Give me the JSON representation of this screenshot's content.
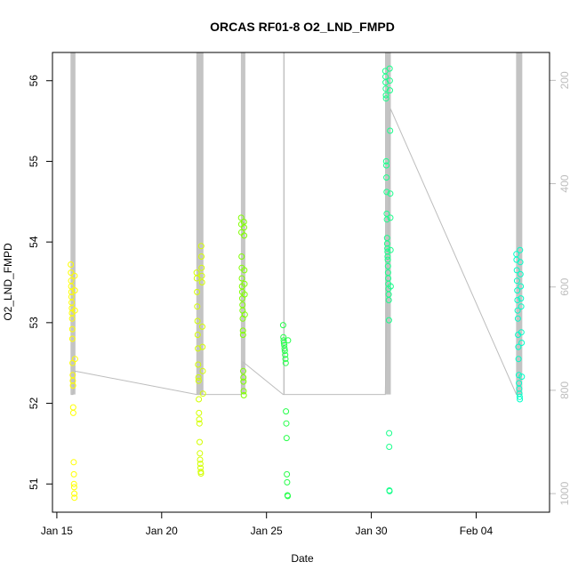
{
  "chart_data": {
    "type": "scatter",
    "title": "ORCAS RF01-8 O2_LND_FMPD",
    "xlabel": "Date",
    "ylabel": "O2_LND_FMPD",
    "x_range": [
      "2016-01-14T19:00",
      "2016-02-07T12:00"
    ],
    "ylim": [
      50.65,
      56.35
    ],
    "y_ticks": [
      51,
      52,
      53,
      54,
      55,
      56
    ],
    "x_ticks": [
      {
        "date": "2016-01-15",
        "label": "Jan 15"
      },
      {
        "date": "2016-01-20",
        "label": "Jan 20"
      },
      {
        "date": "2016-01-25",
        "label": "Jan 25"
      },
      {
        "date": "2016-01-30",
        "label": "Jan 30"
      },
      {
        "date": "2016-02-04",
        "label": "Feb 04"
      }
    ],
    "y2_range": [
      1036,
      146
    ],
    "y2_ticks": [
      200,
      400,
      600,
      800,
      1000
    ],
    "grid": false,
    "pressure_color": "#bdbdbd",
    "series": [
      {
        "color": "#ffff00",
        "points": [
          {
            "x": "2016-01-15T16:00",
            "y": 53.72
          },
          {
            "x": "2016-01-15T16:10",
            "y": 53.62
          },
          {
            "x": "2016-01-15T16:20",
            "y": 53.52
          },
          {
            "x": "2016-01-15T16:30",
            "y": 53.45
          },
          {
            "x": "2016-01-15T16:40",
            "y": 53.38
          },
          {
            "x": "2016-01-15T16:50",
            "y": 53.32
          },
          {
            "x": "2016-01-15T17:00",
            "y": 53.25
          },
          {
            "x": "2016-01-15T17:10",
            "y": 53.18
          },
          {
            "x": "2016-01-15T17:20",
            "y": 53.12
          },
          {
            "x": "2016-01-15T17:30",
            "y": 53.05
          },
          {
            "x": "2016-01-15T17:40",
            "y": 52.92
          },
          {
            "x": "2016-01-15T17:50",
            "y": 52.8
          },
          {
            "x": "2016-01-15T18:00",
            "y": 52.5
          },
          {
            "x": "2016-01-15T18:10",
            "y": 52.35
          },
          {
            "x": "2016-01-15T18:20",
            "y": 52.28
          },
          {
            "x": "2016-01-15T18:30",
            "y": 52.22
          },
          {
            "x": "2016-01-15T18:40",
            "y": 51.95
          },
          {
            "x": "2016-01-15T18:50",
            "y": 51.88
          },
          {
            "x": "2016-01-15T19:20",
            "y": 51.27
          },
          {
            "x": "2016-01-15T19:30",
            "y": 51.12
          },
          {
            "x": "2016-01-15T19:40",
            "y": 51.0
          },
          {
            "x": "2016-01-15T19:50",
            "y": 50.96
          },
          {
            "x": "2016-01-15T20:00",
            "y": 50.88
          },
          {
            "x": "2016-01-15T20:10",
            "y": 50.83
          },
          {
            "x": "2016-01-15T20:20",
            "y": 53.58
          },
          {
            "x": "2016-01-15T20:30",
            "y": 53.4
          },
          {
            "x": "2016-01-15T20:40",
            "y": 53.15
          },
          {
            "x": "2016-01-15T20:50",
            "y": 52.55
          }
        ]
      },
      {
        "color": "#d4ff00",
        "points": [
          {
            "x": "2016-01-21T16:00",
            "y": 53.62
          },
          {
            "x": "2016-01-21T16:15",
            "y": 53.55
          },
          {
            "x": "2016-01-21T16:30",
            "y": 53.38
          },
          {
            "x": "2016-01-21T16:45",
            "y": 53.2
          },
          {
            "x": "2016-01-21T17:00",
            "y": 53.02
          },
          {
            "x": "2016-01-21T17:15",
            "y": 52.85
          },
          {
            "x": "2016-01-21T17:30",
            "y": 52.68
          },
          {
            "x": "2016-01-21T17:45",
            "y": 52.48
          },
          {
            "x": "2016-01-21T18:00",
            "y": 52.32
          },
          {
            "x": "2016-01-21T18:15",
            "y": 52.28
          },
          {
            "x": "2016-01-21T18:30",
            "y": 52.05
          },
          {
            "x": "2016-01-21T18:45",
            "y": 51.88
          },
          {
            "x": "2016-01-21T19:00",
            "y": 51.8
          },
          {
            "x": "2016-01-21T19:15",
            "y": 51.75
          },
          {
            "x": "2016-01-21T19:30",
            "y": 51.52
          },
          {
            "x": "2016-01-21T19:45",
            "y": 51.38
          },
          {
            "x": "2016-01-21T20:00",
            "y": 51.3
          },
          {
            "x": "2016-01-21T20:15",
            "y": 51.25
          },
          {
            "x": "2016-01-21T20:30",
            "y": 51.2
          },
          {
            "x": "2016-01-21T20:45",
            "y": 51.15
          },
          {
            "x": "2016-01-21T21:00",
            "y": 51.13
          },
          {
            "x": "2016-01-21T21:15",
            "y": 53.95
          },
          {
            "x": "2016-01-21T21:30",
            "y": 53.82
          },
          {
            "x": "2016-01-21T21:45",
            "y": 53.68
          },
          {
            "x": "2016-01-21T22:00",
            "y": 53.58
          },
          {
            "x": "2016-01-21T22:15",
            "y": 53.5
          },
          {
            "x": "2016-01-21T22:30",
            "y": 52.95
          },
          {
            "x": "2016-01-21T22:45",
            "y": 52.7
          },
          {
            "x": "2016-01-21T23:00",
            "y": 52.4
          },
          {
            "x": "2016-01-21T23:15",
            "y": 52.12
          }
        ]
      },
      {
        "color": "#80ff00",
        "points": [
          {
            "x": "2016-01-23T19:00",
            "y": 54.3
          },
          {
            "x": "2016-01-23T19:10",
            "y": 54.22
          },
          {
            "x": "2016-01-23T19:20",
            "y": 54.12
          },
          {
            "x": "2016-01-23T19:30",
            "y": 53.82
          },
          {
            "x": "2016-01-23T19:40",
            "y": 53.68
          },
          {
            "x": "2016-01-23T19:50",
            "y": 53.55
          },
          {
            "x": "2016-01-23T20:00",
            "y": 53.45
          },
          {
            "x": "2016-01-23T20:10",
            "y": 53.38
          },
          {
            "x": "2016-01-23T20:20",
            "y": 53.3
          },
          {
            "x": "2016-01-23T20:30",
            "y": 53.22
          },
          {
            "x": "2016-01-23T20:40",
            "y": 53.15
          },
          {
            "x": "2016-01-23T20:50",
            "y": 53.05
          },
          {
            "x": "2016-01-23T21:00",
            "y": 52.9
          },
          {
            "x": "2016-01-23T21:10",
            "y": 52.85
          },
          {
            "x": "2016-01-23T21:20",
            "y": 52.4
          },
          {
            "x": "2016-01-23T21:30",
            "y": 52.32
          },
          {
            "x": "2016-01-23T21:40",
            "y": 52.27
          },
          {
            "x": "2016-01-23T21:50",
            "y": 52.15
          },
          {
            "x": "2016-01-23T22:00",
            "y": 52.1
          },
          {
            "x": "2016-01-23T22:10",
            "y": 54.25
          },
          {
            "x": "2016-01-23T22:20",
            "y": 54.18
          },
          {
            "x": "2016-01-23T22:30",
            "y": 54.08
          },
          {
            "x": "2016-01-23T22:40",
            "y": 53.65
          },
          {
            "x": "2016-01-23T22:50",
            "y": 53.48
          },
          {
            "x": "2016-01-23T23:00",
            "y": 53.35
          },
          {
            "x": "2016-01-23T23:10",
            "y": 53.1
          }
        ]
      },
      {
        "color": "#26ff4a",
        "points": [
          {
            "x": "2016-01-25T19:00",
            "y": 52.97
          },
          {
            "x": "2016-01-25T19:20",
            "y": 52.82
          },
          {
            "x": "2016-01-25T19:40",
            "y": 52.78
          },
          {
            "x": "2016-01-25T20:00",
            "y": 52.75
          },
          {
            "x": "2016-01-25T20:20",
            "y": 52.72
          },
          {
            "x": "2016-01-25T20:40",
            "y": 52.68
          },
          {
            "x": "2016-01-25T21:00",
            "y": 52.65
          },
          {
            "x": "2016-01-25T21:20",
            "y": 52.6
          },
          {
            "x": "2016-01-25T21:40",
            "y": 52.55
          },
          {
            "x": "2016-01-25T22:00",
            "y": 52.5
          },
          {
            "x": "2016-01-25T22:20",
            "y": 51.9
          },
          {
            "x": "2016-01-25T22:40",
            "y": 51.75
          },
          {
            "x": "2016-01-25T23:00",
            "y": 51.57
          },
          {
            "x": "2016-01-25T23:20",
            "y": 51.12
          },
          {
            "x": "2016-01-25T23:40",
            "y": 51.02
          },
          {
            "x": "2016-01-26T00:00",
            "y": 50.86
          },
          {
            "x": "2016-01-26T00:20",
            "y": 50.85
          },
          {
            "x": "2016-01-26T00:40",
            "y": 52.78
          }
        ]
      },
      {
        "color": "#1aff8c",
        "points": [
          {
            "x": "2016-01-30T16:00",
            "y": 56.12
          },
          {
            "x": "2016-01-30T16:10",
            "y": 56.05
          },
          {
            "x": "2016-01-30T16:20",
            "y": 55.98
          },
          {
            "x": "2016-01-30T16:30",
            "y": 55.9
          },
          {
            "x": "2016-01-30T16:40",
            "y": 55.82
          },
          {
            "x": "2016-01-30T16:50",
            "y": 55.78
          },
          {
            "x": "2016-01-30T17:00",
            "y": 55.0
          },
          {
            "x": "2016-01-30T17:10",
            "y": 54.95
          },
          {
            "x": "2016-01-30T17:20",
            "y": 54.8
          },
          {
            "x": "2016-01-30T17:30",
            "y": 54.62
          },
          {
            "x": "2016-01-30T17:40",
            "y": 54.35
          },
          {
            "x": "2016-01-30T17:50",
            "y": 54.28
          },
          {
            "x": "2016-01-30T18:00",
            "y": 54.05
          },
          {
            "x": "2016-01-30T18:10",
            "y": 53.98
          },
          {
            "x": "2016-01-30T18:20",
            "y": 53.92
          },
          {
            "x": "2016-01-30T18:30",
            "y": 53.88
          },
          {
            "x": "2016-01-30T18:40",
            "y": 53.82
          },
          {
            "x": "2016-01-30T18:50",
            "y": 53.78
          },
          {
            "x": "2016-01-30T19:00",
            "y": 53.7
          },
          {
            "x": "2016-01-30T19:10",
            "y": 53.62
          },
          {
            "x": "2016-01-30T19:20",
            "y": 53.55
          },
          {
            "x": "2016-01-30T19:30",
            "y": 53.48
          },
          {
            "x": "2016-01-30T19:40",
            "y": 53.42
          },
          {
            "x": "2016-01-30T19:50",
            "y": 53.35
          },
          {
            "x": "2016-01-30T20:00",
            "y": 53.28
          },
          {
            "x": "2016-01-30T20:10",
            "y": 53.03
          },
          {
            "x": "2016-01-30T20:20",
            "y": 51.63
          },
          {
            "x": "2016-01-30T20:30",
            "y": 51.46
          },
          {
            "x": "2016-01-30T20:40",
            "y": 50.92
          },
          {
            "x": "2016-01-30T20:50",
            "y": 50.91
          },
          {
            "x": "2016-01-30T21:00",
            "y": 56.15
          },
          {
            "x": "2016-01-30T21:10",
            "y": 56.0
          },
          {
            "x": "2016-01-30T21:20",
            "y": 55.88
          },
          {
            "x": "2016-01-30T21:30",
            "y": 55.38
          },
          {
            "x": "2016-01-30T21:40",
            "y": 54.6
          },
          {
            "x": "2016-01-30T21:50",
            "y": 54.3
          },
          {
            "x": "2016-01-30T22:00",
            "y": 53.9
          },
          {
            "x": "2016-01-30T22:10",
            "y": 53.45
          }
        ]
      },
      {
        "color": "#00ffc8",
        "points": [
          {
            "x": "2016-02-05T22:00",
            "y": 53.85
          },
          {
            "x": "2016-02-05T22:15",
            "y": 53.78
          },
          {
            "x": "2016-02-05T22:30",
            "y": 53.65
          },
          {
            "x": "2016-02-05T22:45",
            "y": 53.52
          },
          {
            "x": "2016-02-05T23:00",
            "y": 53.4
          },
          {
            "x": "2016-02-05T23:15",
            "y": 53.28
          },
          {
            "x": "2016-02-05T23:30",
            "y": 53.15
          },
          {
            "x": "2016-02-05T23:45",
            "y": 53.05
          },
          {
            "x": "2016-02-06T00:00",
            "y": 52.85
          },
          {
            "x": "2016-02-06T00:15",
            "y": 52.7
          },
          {
            "x": "2016-02-06T00:30",
            "y": 52.55
          },
          {
            "x": "2016-02-06T00:45",
            "y": 52.35
          },
          {
            "x": "2016-02-06T01:00",
            "y": 52.25
          },
          {
            "x": "2016-02-06T01:15",
            "y": 52.18
          },
          {
            "x": "2016-02-06T01:30",
            "y": 52.12
          },
          {
            "x": "2016-02-06T01:45",
            "y": 52.08
          },
          {
            "x": "2016-02-06T02:00",
            "y": 52.05
          },
          {
            "x": "2016-02-06T02:15",
            "y": 53.9
          },
          {
            "x": "2016-02-06T02:30",
            "y": 53.75
          },
          {
            "x": "2016-02-06T02:45",
            "y": 53.6
          },
          {
            "x": "2016-02-06T03:00",
            "y": 53.45
          },
          {
            "x": "2016-02-06T03:15",
            "y": 53.3
          },
          {
            "x": "2016-02-06T03:30",
            "y": 53.2
          },
          {
            "x": "2016-02-06T03:45",
            "y": 52.88
          },
          {
            "x": "2016-02-06T04:00",
            "y": 52.75
          },
          {
            "x": "2016-02-06T04:15",
            "y": 52.33
          }
        ]
      }
    ],
    "pressure": {
      "ground": 808,
      "path": [
        {
          "x": "2016-01-15T16:00",
          "y": 808
        },
        {
          "x": "2016-01-15T18:30",
          "y": 808
        },
        {
          "x": "2016-01-15T21:00",
          "y": 763
        },
        {
          "x": "2016-01-21T16:00",
          "y": 808
        },
        {
          "x": "2016-01-21T23:30",
          "y": 808
        },
        {
          "x": "2016-01-23T19:00",
          "y": 808
        },
        {
          "x": "2016-01-23T21:00",
          "y": 745
        },
        {
          "x": "2016-01-25T19:00",
          "y": 808
        },
        {
          "x": "2016-01-26T01:00",
          "y": 808
        },
        {
          "x": "2016-01-30T16:00",
          "y": 808
        },
        {
          "x": "2016-01-30T22:00",
          "y": 255
        },
        {
          "x": "2016-02-05T22:00",
          "y": 808
        },
        {
          "x": "2016-02-06T04:30",
          "y": 808
        }
      ],
      "flights": [
        {
          "start": "2016-01-15T16:00",
          "end": "2016-01-15T21:00",
          "bottom": 808,
          "top": 146
        },
        {
          "start": "2016-01-21T16:00",
          "end": "2016-01-21T23:30",
          "bottom": 808,
          "top": 146
        },
        {
          "start": "2016-01-23T19:00",
          "end": "2016-01-23T23:30",
          "bottom": 808,
          "top": 146
        },
        {
          "start": "2016-01-25T19:30",
          "end": "2016-01-25T20:30",
          "bottom": 808,
          "top": 146
        },
        {
          "start": "2016-01-30T16:00",
          "end": "2016-01-30T22:00",
          "bottom": 808,
          "top": 146
        },
        {
          "start": "2016-02-05T22:00",
          "end": "2016-02-06T04:30",
          "bottom": 808,
          "top": 146
        }
      ]
    }
  }
}
